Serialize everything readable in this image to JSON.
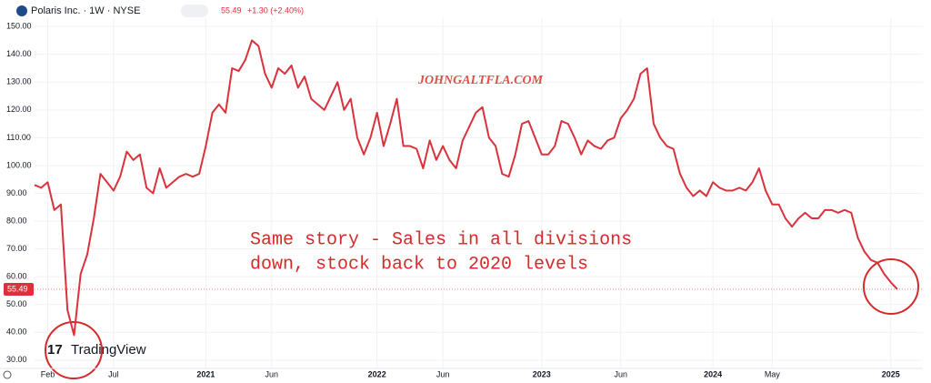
{
  "chart_data": {
    "type": "line",
    "title": "Polaris Inc. · 1W · NYSE",
    "quote": {
      "price": 55.49,
      "change": "+1.30 (+2.40%)"
    },
    "watermark": "JOHNGALTFLA.COM",
    "annotations": [
      "Same story - Sales in all divisions",
      "down, stock back to 2020 levels"
    ],
    "brand": "TradingView",
    "categories": [
      null,
      null,
      "Feb",
      null,
      null,
      null,
      null,
      null,
      null,
      null,
      null,
      null,
      "Jul",
      null,
      null,
      null,
      null,
      null,
      null,
      null,
      null,
      null,
      null,
      null,
      null,
      null,
      "2021",
      null,
      null,
      null,
      null,
      null,
      null,
      null,
      null,
      null,
      "Jun",
      null,
      null,
      null,
      null,
      null,
      null,
      null,
      null,
      null,
      null,
      null,
      null,
      null,
      null,
      null,
      "2022",
      null,
      null,
      null,
      null,
      null,
      null,
      null,
      null,
      null,
      "Jun",
      null,
      null,
      null,
      null,
      null,
      null,
      null,
      null,
      null,
      null,
      null,
      null,
      null,
      null,
      "2023",
      null,
      null,
      null,
      null,
      null,
      null,
      null,
      null,
      null,
      null,
      null,
      "Jun",
      null,
      null,
      null,
      null,
      null,
      null,
      null,
      null,
      null,
      null,
      null,
      null,
      null,
      "2024",
      null,
      null,
      null,
      null,
      null,
      null,
      null,
      null,
      "May",
      null,
      null,
      null,
      null,
      null,
      null,
      null,
      null,
      null,
      null,
      null,
      null,
      null,
      null,
      null,
      null,
      null,
      "2025",
      null
    ],
    "series": [
      {
        "name": "Polaris Inc.",
        "color": "#d9323c",
        "values": [
          93,
          92,
          94,
          84,
          86,
          48,
          39,
          61,
          68,
          81,
          97,
          94,
          91,
          96,
          105,
          102,
          104,
          92,
          90,
          99,
          92,
          94,
          96,
          97,
          96,
          97,
          107,
          119,
          122,
          119,
          135,
          134,
          138,
          145,
          143,
          133,
          128,
          135,
          133,
          136,
          128,
          132,
          124,
          122,
          120,
          125,
          130,
          120,
          124,
          110,
          104,
          110,
          119,
          107,
          115,
          124,
          107,
          107,
          106,
          99,
          109,
          102,
          107,
          102,
          99,
          109,
          114,
          119,
          121,
          110,
          107,
          97,
          96,
          104,
          115,
          116,
          110,
          104,
          104,
          107,
          116,
          115,
          110,
          104,
          109,
          107,
          106,
          109,
          110,
          117,
          120,
          124,
          133,
          135,
          115,
          110,
          107,
          106,
          97,
          92,
          89,
          91,
          89,
          94,
          92,
          91,
          91,
          92,
          91,
          94,
          99,
          91,
          86,
          86,
          81,
          78,
          81,
          83,
          81,
          81,
          84,
          84,
          83,
          84,
          83,
          74,
          69,
          66,
          65,
          61,
          58,
          55.49
        ]
      }
    ],
    "ylim": [
      27,
      153
    ],
    "yticks": [
      {
        "value": 30,
        "label": "30.00"
      },
      {
        "value": 40,
        "label": "40.00"
      },
      {
        "value": 50,
        "label": "50.00"
      },
      {
        "value": 60,
        "label": "60.00"
      },
      {
        "value": 70,
        "label": "70.00"
      },
      {
        "value": 80,
        "label": "80.00"
      },
      {
        "value": 90,
        "label": "90.00"
      },
      {
        "value": 100,
        "label": "100.00"
      },
      {
        "value": 110,
        "label": "110.00"
      },
      {
        "value": 120,
        "label": "120.00"
      },
      {
        "value": 130,
        "label": "130.00"
      },
      {
        "value": 140,
        "label": "140.00"
      },
      {
        "value": 150,
        "label": "150.00"
      }
    ],
    "grid": true
  }
}
